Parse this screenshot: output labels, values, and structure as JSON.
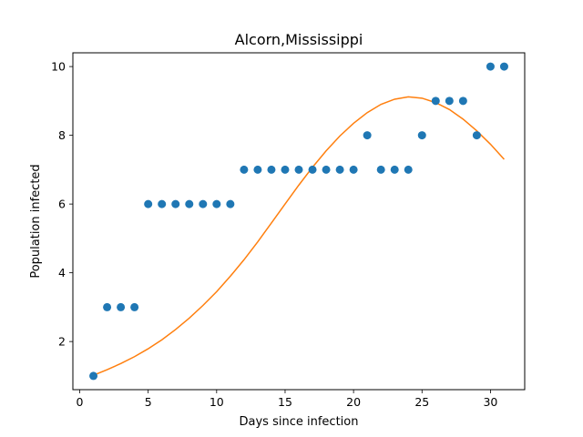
{
  "chart_data": {
    "type": "scatter",
    "title": "Alcorn,Mississippi",
    "xlabel": "Days since infection",
    "ylabel": "Population infected",
    "xlim": [
      -0.5,
      32.5
    ],
    "ylim": [
      0.6,
      10.4
    ],
    "xticks": [
      0,
      5,
      10,
      15,
      20,
      25,
      30
    ],
    "yticks": [
      2,
      4,
      6,
      8,
      10
    ],
    "grid": false,
    "series": [
      {
        "kind": "scatter",
        "color": "#1f77b4",
        "x": [
          1,
          2,
          3,
          4,
          5,
          6,
          7,
          8,
          9,
          10,
          11,
          12,
          13,
          14,
          15,
          16,
          17,
          18,
          19,
          20,
          21,
          22,
          23,
          24,
          25,
          26,
          27,
          28,
          29,
          30,
          31
        ],
        "y": [
          1,
          3,
          3,
          3,
          6,
          6,
          6,
          6,
          6,
          6,
          6,
          7,
          7,
          7,
          7,
          7,
          7,
          7,
          7,
          7,
          8,
          7,
          7,
          7,
          8,
          9,
          9,
          9,
          8,
          10,
          10
        ]
      },
      {
        "kind": "line",
        "color": "#ff7f0e",
        "x": [
          1,
          2,
          3,
          4,
          5,
          6,
          7,
          8,
          9,
          10,
          11,
          12,
          13,
          14,
          15,
          16,
          17,
          18,
          19,
          20,
          21,
          22,
          23,
          24,
          25,
          26,
          27,
          28,
          29,
          30,
          31
        ],
        "y": [
          1.02,
          1.18,
          1.36,
          1.56,
          1.79,
          2.05,
          2.35,
          2.68,
          3.05,
          3.45,
          3.9,
          4.38,
          4.9,
          5.45,
          6.0,
          6.55,
          7.07,
          7.55,
          7.98,
          8.35,
          8.66,
          8.9,
          9.05,
          9.12,
          9.08,
          8.95,
          8.75,
          8.47,
          8.13,
          7.74,
          7.3
        ]
      }
    ]
  }
}
